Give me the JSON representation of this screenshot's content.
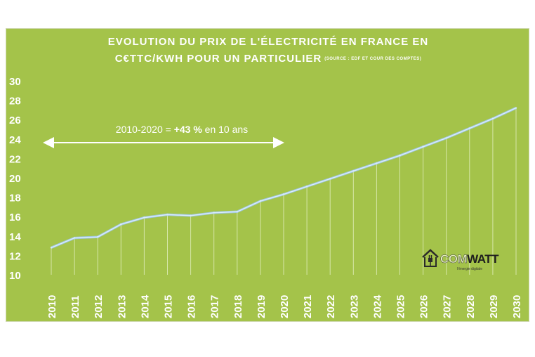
{
  "title_line1": "EVOLUTION DU PRIX DE L'ÉLECTRICITÉ EN FRANCE  EN",
  "title_line2": "C€TTC/KWH POUR UN PARTICULIER",
  "source_note": "(SOURCE : EDF ET COUR DES COMPTES)",
  "annotation": {
    "range": "2010-2020 = ",
    "increase": "+43 %",
    "suffix": " en 10 ans"
  },
  "logo": {
    "name_part1": "COM",
    "name_part2": "WATT",
    "tagline": "l'énergie digitale",
    "icon": "house-plug-icon"
  },
  "colors": {
    "background": "#a4c34a",
    "line": "#d9ecff",
    "text": "#ffffff"
  },
  "chart_data": {
    "type": "line",
    "title": "EVOLUTION DU PRIX DE L'ÉLECTRICITÉ EN FRANCE EN C€TTC/KWH POUR UN PARTICULIER",
    "xlabel": "",
    "ylabel": "",
    "x": [
      "2010",
      "2011",
      "2012",
      "2013",
      "2014",
      "2015",
      "2016",
      "2017",
      "2018",
      "2019",
      "2020",
      "2021",
      "2022",
      "2023",
      "2024",
      "2025",
      "2026",
      "2027",
      "2028",
      "2029",
      "2030"
    ],
    "series": [
      {
        "values": [
          12.8,
          13.8,
          13.9,
          15.2,
          15.9,
          16.2,
          16.1,
          16.4,
          16.5,
          17.6,
          18.3,
          19.1,
          19.9,
          20.7,
          21.5,
          22.3,
          23.2,
          24.1,
          25.1,
          26.1,
          27.2
        ]
      }
    ],
    "ylim": [
      10,
      30
    ],
    "yticks": [
      "10",
      "12",
      "14",
      "16",
      "18",
      "20",
      "22",
      "24",
      "26",
      "28",
      "30"
    ],
    "grid": false
  }
}
